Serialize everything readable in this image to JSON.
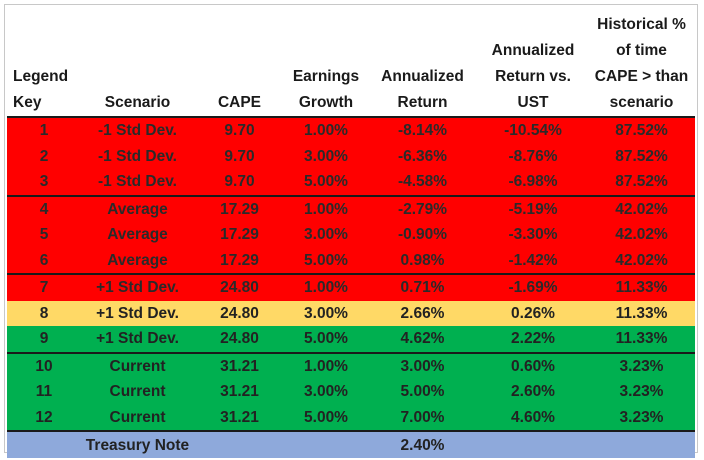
{
  "headers": [
    {
      "key": "h1",
      "text": "Legend\nKey"
    },
    {
      "key": "h2",
      "text": "Scenario"
    },
    {
      "key": "h3",
      "text": "CAPE"
    },
    {
      "key": "h4",
      "text": "Earnings\nGrowth"
    },
    {
      "key": "h5",
      "text": "Annualized\nReturn"
    },
    {
      "key": "h6",
      "text": "Annualized\nReturn vs.\nUST"
    },
    {
      "key": "h7",
      "text": "Historical %\nof time\nCAPE > than\nscenario"
    }
  ],
  "header_lines": {
    "legend_key": [
      "Legend",
      "Key"
    ],
    "scenario": [
      "Scenario"
    ],
    "cape": [
      "CAPE"
    ],
    "earnings_growth": [
      "Earnings",
      "Growth"
    ],
    "annualized_return": [
      "Annualized",
      "Return"
    ],
    "return_vs_ust": [
      "Annualized",
      "Return vs.",
      "UST"
    ],
    "historical_pct": [
      "Historical %",
      "of time",
      "CAPE > than",
      "scenario"
    ]
  },
  "rows": [
    {
      "key": "1",
      "scenario": "-1 Std Dev.",
      "cape": "9.70",
      "growth": "1.00%",
      "ret": "-8.14%",
      "vs_ust": "-10.54%",
      "hist": "87.52%",
      "color": "#ff0000"
    },
    {
      "key": "2",
      "scenario": "-1 Std Dev.",
      "cape": "9.70",
      "growth": "3.00%",
      "ret": "-6.36%",
      "vs_ust": "-8.76%",
      "hist": "87.52%",
      "color": "#ff0000"
    },
    {
      "key": "3",
      "scenario": "-1 Std Dev.",
      "cape": "9.70",
      "growth": "5.00%",
      "ret": "-4.58%",
      "vs_ust": "-6.98%",
      "hist": "87.52%",
      "color": "#ff0000"
    },
    {
      "key": "4",
      "scenario": "Average",
      "cape": "17.29",
      "growth": "1.00%",
      "ret": "-2.79%",
      "vs_ust": "-5.19%",
      "hist": "42.02%",
      "color": "#ff0000"
    },
    {
      "key": "5",
      "scenario": "Average",
      "cape": "17.29",
      "growth": "3.00%",
      "ret": "-0.90%",
      "vs_ust": "-3.30%",
      "hist": "42.02%",
      "color": "#ff0000"
    },
    {
      "key": "6",
      "scenario": "Average",
      "cape": "17.29",
      "growth": "5.00%",
      "ret": "0.98%",
      "vs_ust": "-1.42%",
      "hist": "42.02%",
      "color": "#ff0000"
    },
    {
      "key": "7",
      "scenario": "+1 Std Dev.",
      "cape": "24.80",
      "growth": "1.00%",
      "ret": "0.71%",
      "vs_ust": "-1.69%",
      "hist": "11.33%",
      "color": "#ff0000"
    },
    {
      "key": "8",
      "scenario": "+1 Std Dev.",
      "cape": "24.80",
      "growth": "3.00%",
      "ret": "2.66%",
      "vs_ust": "0.26%",
      "hist": "11.33%",
      "color": "#ffd966"
    },
    {
      "key": "9",
      "scenario": "+1 Std Dev.",
      "cape": "24.80",
      "growth": "5.00%",
      "ret": "4.62%",
      "vs_ust": "2.22%",
      "hist": "11.33%",
      "color": "#00b050"
    },
    {
      "key": "10",
      "scenario": "Current",
      "cape": "31.21",
      "growth": "1.00%",
      "ret": "3.00%",
      "vs_ust": "0.60%",
      "hist": "3.23%",
      "color": "#00b050"
    },
    {
      "key": "11",
      "scenario": "Current",
      "cape": "31.21",
      "growth": "3.00%",
      "ret": "5.00%",
      "vs_ust": "2.60%",
      "hist": "3.23%",
      "color": "#00b050"
    },
    {
      "key": "12",
      "scenario": "Current",
      "cape": "31.21",
      "growth": "5.00%",
      "ret": "7.00%",
      "vs_ust": "4.60%",
      "hist": "3.23%",
      "color": "#00b050"
    }
  ],
  "footer": {
    "label": "Treasury Note",
    "ret": "2.40%",
    "color": "#8ea9db"
  },
  "colors": {
    "red": "#ff0000",
    "yellow": "#ffd966",
    "green": "#00b050",
    "blue": "#8ea9db",
    "border": "#1a1a1a"
  }
}
